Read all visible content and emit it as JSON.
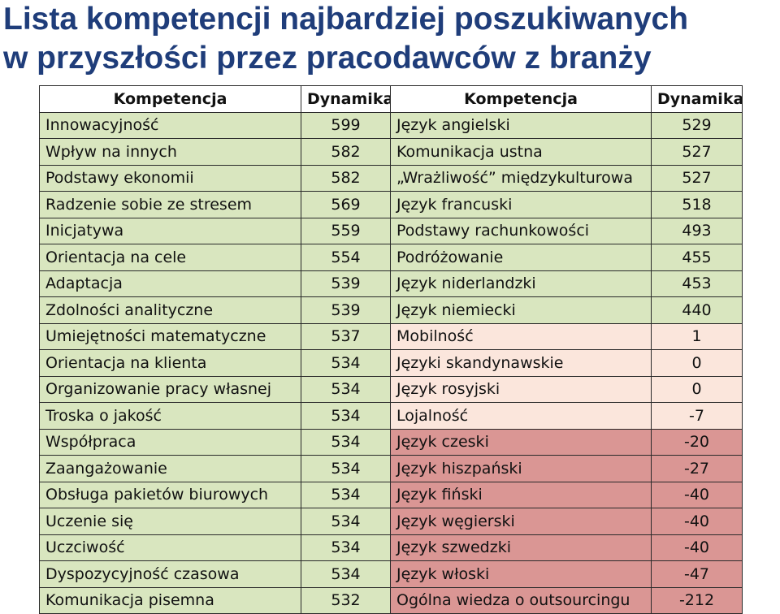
{
  "title": {
    "line1": "Lista kompetencji najbardziej poszukiwanych",
    "line2": "w przyszłości przez pracodawców z branży"
  },
  "colors": {
    "title": "#1f3d7a",
    "positive": "#d9e6bf",
    "neutral": "#fbe6dc",
    "negative": "#da9694"
  },
  "table": {
    "headers": [
      "Kompetencja",
      "Dynamika",
      "Kompetencja",
      "Dynamika"
    ],
    "rows": [
      {
        "left_name": "Innowacyjność",
        "left_value": "599",
        "right_name": "Język angielski",
        "right_value": "529",
        "right_tone": "positive"
      },
      {
        "left_name": "Wpływ na innych",
        "left_value": "582",
        "right_name": "Komunikacja ustna",
        "right_value": "527",
        "right_tone": "positive"
      },
      {
        "left_name": "Podstawy ekonomii",
        "left_value": "582",
        "right_name": "„Wrażliwość” międzykulturowa",
        "right_value": "527",
        "right_tone": "positive"
      },
      {
        "left_name": "Radzenie sobie ze stresem",
        "left_value": "569",
        "right_name": "Język francuski",
        "right_value": "518",
        "right_tone": "positive"
      },
      {
        "left_name": "Inicjatywa",
        "left_value": "559",
        "right_name": "Podstawy rachunkowości",
        "right_value": "493",
        "right_tone": "positive"
      },
      {
        "left_name": "Orientacja na cele",
        "left_value": "554",
        "right_name": "Podróżowanie",
        "right_value": "455",
        "right_tone": "positive"
      },
      {
        "left_name": "Adaptacja",
        "left_value": "539",
        "right_name": "Język niderlandzki",
        "right_value": "453",
        "right_tone": "positive"
      },
      {
        "left_name": "Zdolności analityczne",
        "left_value": "539",
        "right_name": "Język niemiecki",
        "right_value": "440",
        "right_tone": "positive"
      },
      {
        "left_name": "Umiejętności matematyczne",
        "left_value": "537",
        "right_name": "Mobilność",
        "right_value": "1",
        "right_tone": "neutral"
      },
      {
        "left_name": "Orientacja na klienta",
        "left_value": "534",
        "right_name": "Języki skandynawskie",
        "right_value": "0",
        "right_tone": "neutral"
      },
      {
        "left_name": "Organizowanie pracy własnej",
        "left_value": "534",
        "right_name": "Język rosyjski",
        "right_value": "0",
        "right_tone": "neutral"
      },
      {
        "left_name": "Troska o jakość",
        "left_value": "534",
        "right_name": "Lojalność",
        "right_value": "-7",
        "right_tone": "neutral"
      },
      {
        "left_name": "Współpraca",
        "left_value": "534",
        "right_name": "Język czeski",
        "right_value": "-20",
        "right_tone": "negative"
      },
      {
        "left_name": "Zaangażowanie",
        "left_value": "534",
        "right_name": "Język hiszpański",
        "right_value": "-27",
        "right_tone": "negative"
      },
      {
        "left_name": "Obsługa pakietów biurowych",
        "left_value": "534",
        "right_name": "Język fiński",
        "right_value": "-40",
        "right_tone": "negative"
      },
      {
        "left_name": "Uczenie się",
        "left_value": "534",
        "right_name": "Język węgierski",
        "right_value": "-40",
        "right_tone": "negative"
      },
      {
        "left_name": "Uczciwość",
        "left_value": "534",
        "right_name": "Język szwedzki",
        "right_value": "-40",
        "right_tone": "negative"
      },
      {
        "left_name": "Dyspozycyjność czasowa",
        "left_value": "534",
        "right_name": "Język włoski",
        "right_value": "-47",
        "right_tone": "negative"
      },
      {
        "left_name": "Komunikacja pisemna",
        "left_value": "532",
        "right_name": "Ogólna wiedza o outsourcingu",
        "right_value": "-212",
        "right_tone": "negative"
      }
    ]
  }
}
